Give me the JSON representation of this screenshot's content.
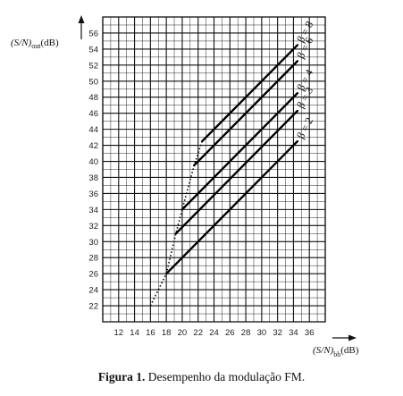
{
  "chart_data": {
    "type": "line",
    "x": {
      "label_main": "(S/N)",
      "label_sub": "bb",
      "label_unit": "(dB)",
      "min": 10,
      "max": 38,
      "ticks": [
        12,
        14,
        16,
        18,
        20,
        22,
        24,
        26,
        28,
        30,
        32,
        34,
        36
      ]
    },
    "y": {
      "label_main": "(S/N)",
      "label_sub": "out",
      "label_unit": "(dB)",
      "min": 20,
      "max": 58,
      "ticks": [
        22,
        24,
        26,
        28,
        30,
        32,
        34,
        36,
        38,
        40,
        42,
        44,
        46,
        48,
        50,
        52,
        54,
        56
      ]
    },
    "grid": true,
    "series": [
      {
        "name": "β = 2",
        "points": [
          [
            18,
            26
          ],
          [
            34.5,
            42.5
          ]
        ]
      },
      {
        "name": "β = 3",
        "points": [
          [
            19.2,
            31
          ],
          [
            34.5,
            46.3
          ]
        ]
      },
      {
        "name": "β = 4",
        "points": [
          [
            20,
            34
          ],
          [
            34.5,
            48.5
          ]
        ]
      },
      {
        "name": "β = 6",
        "points": [
          [
            21.5,
            39.5
          ],
          [
            34.5,
            52.5
          ]
        ]
      },
      {
        "name": "β = 8",
        "points": [
          [
            22.5,
            42.5
          ],
          [
            34.5,
            54.5
          ]
        ]
      }
    ],
    "threshold": {
      "style": "dotted",
      "points": [
        [
          16,
          22
        ],
        [
          18,
          26
        ],
        [
          19.2,
          31
        ],
        [
          20,
          34
        ],
        [
          21.5,
          39.5
        ],
        [
          22.5,
          42.5
        ]
      ]
    }
  },
  "caption": {
    "label": "Figura 1.",
    "text": " Desempenho da modulação FM."
  }
}
